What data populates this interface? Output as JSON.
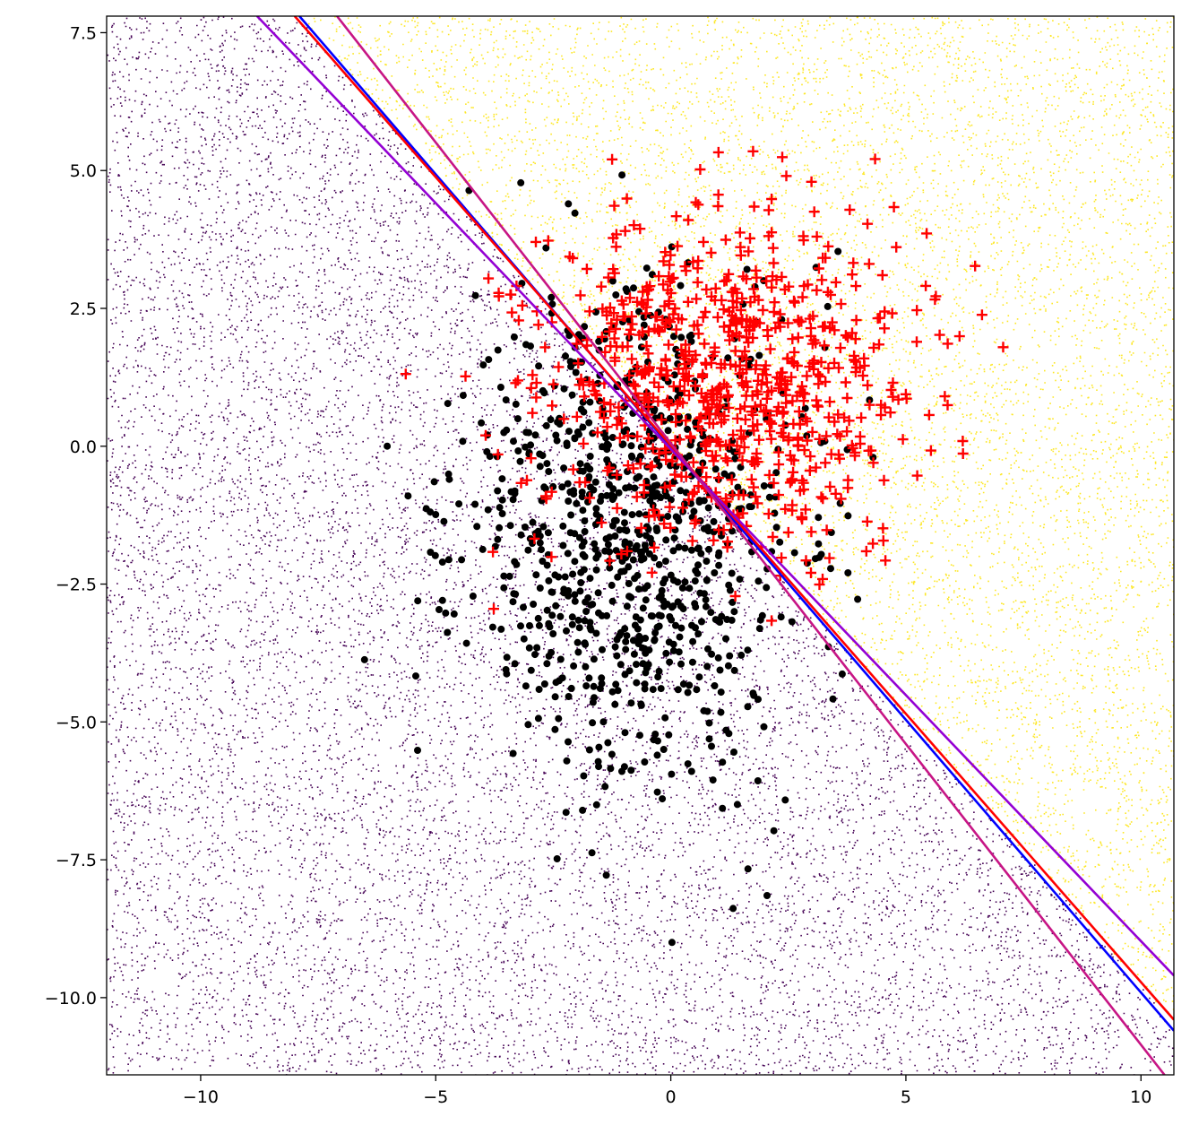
{
  "chart_data": {
    "type": "scatter",
    "title": "",
    "xlabel": "",
    "ylabel": "",
    "xlim": [
      -12.0,
      10.7
    ],
    "ylim": [
      -11.4,
      7.8
    ],
    "grid": false,
    "x_ticks": [
      -10,
      -5,
      0,
      5,
      10
    ],
    "x_tick_labels": [
      "−10",
      "−5",
      "0",
      "5",
      "10"
    ],
    "y_ticks": [
      -10.0,
      -7.5,
      -5.0,
      -2.5,
      0.0,
      2.5,
      5.0,
      7.5
    ],
    "y_tick_labels": [
      "−10.0",
      "−7.5",
      "−5.0",
      "−2.5",
      "0.0",
      "2.5",
      "5.0",
      "7.5"
    ],
    "background_regions": [
      {
        "class": 0,
        "color": "#440154",
        "side": "below",
        "boundary": {
          "slope": -0.98,
          "intercept": 0.0
        },
        "approx_points": 11000
      },
      {
        "class": 1,
        "color": "#fde725",
        "side": "above",
        "boundary": {
          "slope": -0.98,
          "intercept": 0.0
        },
        "approx_points": 9000
      }
    ],
    "series": [
      {
        "marker": "circle",
        "color": "#000000",
        "center": [
          -0.8,
          -1.6
        ],
        "spread": [
          2.4,
          2.9
        ],
        "count": 900
      },
      {
        "marker": "plus",
        "color": "#ff0000",
        "center": [
          1.2,
          1.2
        ],
        "spread": [
          2.6,
          2.0
        ],
        "count": 820
      }
    ],
    "boundary_lines": [
      {
        "color": "#0000ff",
        "x1": -7.9,
        "y1": 7.8,
        "x2": 10.7,
        "y2": -10.6
      },
      {
        "color": "#ff0000",
        "x1": -8.0,
        "y1": 7.8,
        "x2": 10.7,
        "y2": -10.4
      },
      {
        "color": "#9400d3",
        "x1": -8.8,
        "y1": 7.8,
        "x2": 10.7,
        "y2": -9.6
      },
      {
        "color": "#c71585",
        "x1": -7.1,
        "y1": 7.8,
        "x2": 10.5,
        "y2": -11.4
      }
    ]
  }
}
